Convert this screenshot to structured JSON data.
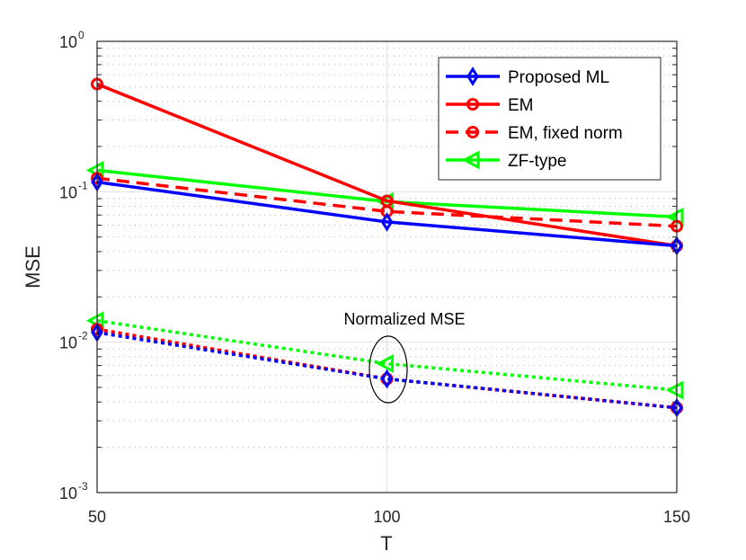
{
  "chart_data": {
    "type": "line",
    "xlabel": "T",
    "ylabel": "MSE",
    "x": [
      50,
      100,
      150
    ],
    "xlim": [
      50,
      150
    ],
    "ylim": [
      0.001,
      1
    ],
    "yscale": "log",
    "grid": true,
    "x_ticks": [
      "50",
      "100",
      "150"
    ],
    "y_ticks": [
      {
        "base": "10",
        "exp": "0"
      },
      {
        "base": "10",
        "exp": "-1"
      },
      {
        "base": "10",
        "exp": "-2"
      },
      {
        "base": "10",
        "exp": "-3"
      }
    ],
    "legend_position": "top-right",
    "annotation": "Normalized MSE",
    "series": [
      {
        "name": "Proposed ML",
        "color": "#0000ff",
        "style": "solid",
        "marker": "diamond",
        "values": [
          0.116,
          0.063,
          0.0437
        ]
      },
      {
        "name": "EM",
        "color": "#ff0000",
        "style": "solid",
        "marker": "circle",
        "values": [
          0.52,
          0.087,
          0.0437
        ]
      },
      {
        "name": "EM, fixed norm",
        "color": "#ff0000",
        "style": "dashed",
        "marker": "circle",
        "values": [
          0.123,
          0.074,
          0.059
        ]
      },
      {
        "name": "ZF-type",
        "color": "#00ff00",
        "style": "solid",
        "marker": "triangle-left",
        "values": [
          0.139,
          0.086,
          0.068
        ]
      },
      {
        "color": "#0000ff",
        "style": "dotted",
        "marker": "diamond",
        "values": [
          0.0116,
          0.0057,
          0.00366
        ]
      },
      {
        "color": "#ff0000",
        "style": "dotted",
        "marker": "circle",
        "values": [
          0.0122,
          0.0057,
          0.00366
        ]
      },
      {
        "color": "#ff0000",
        "style": "dotted",
        "marker": "circle",
        "values": [
          0.0122,
          0.0057,
          0.00366
        ]
      },
      {
        "color": "#00ff00",
        "style": "dotted",
        "marker": "triangle-left",
        "values": [
          0.0139,
          0.0072,
          0.0048
        ]
      }
    ]
  }
}
